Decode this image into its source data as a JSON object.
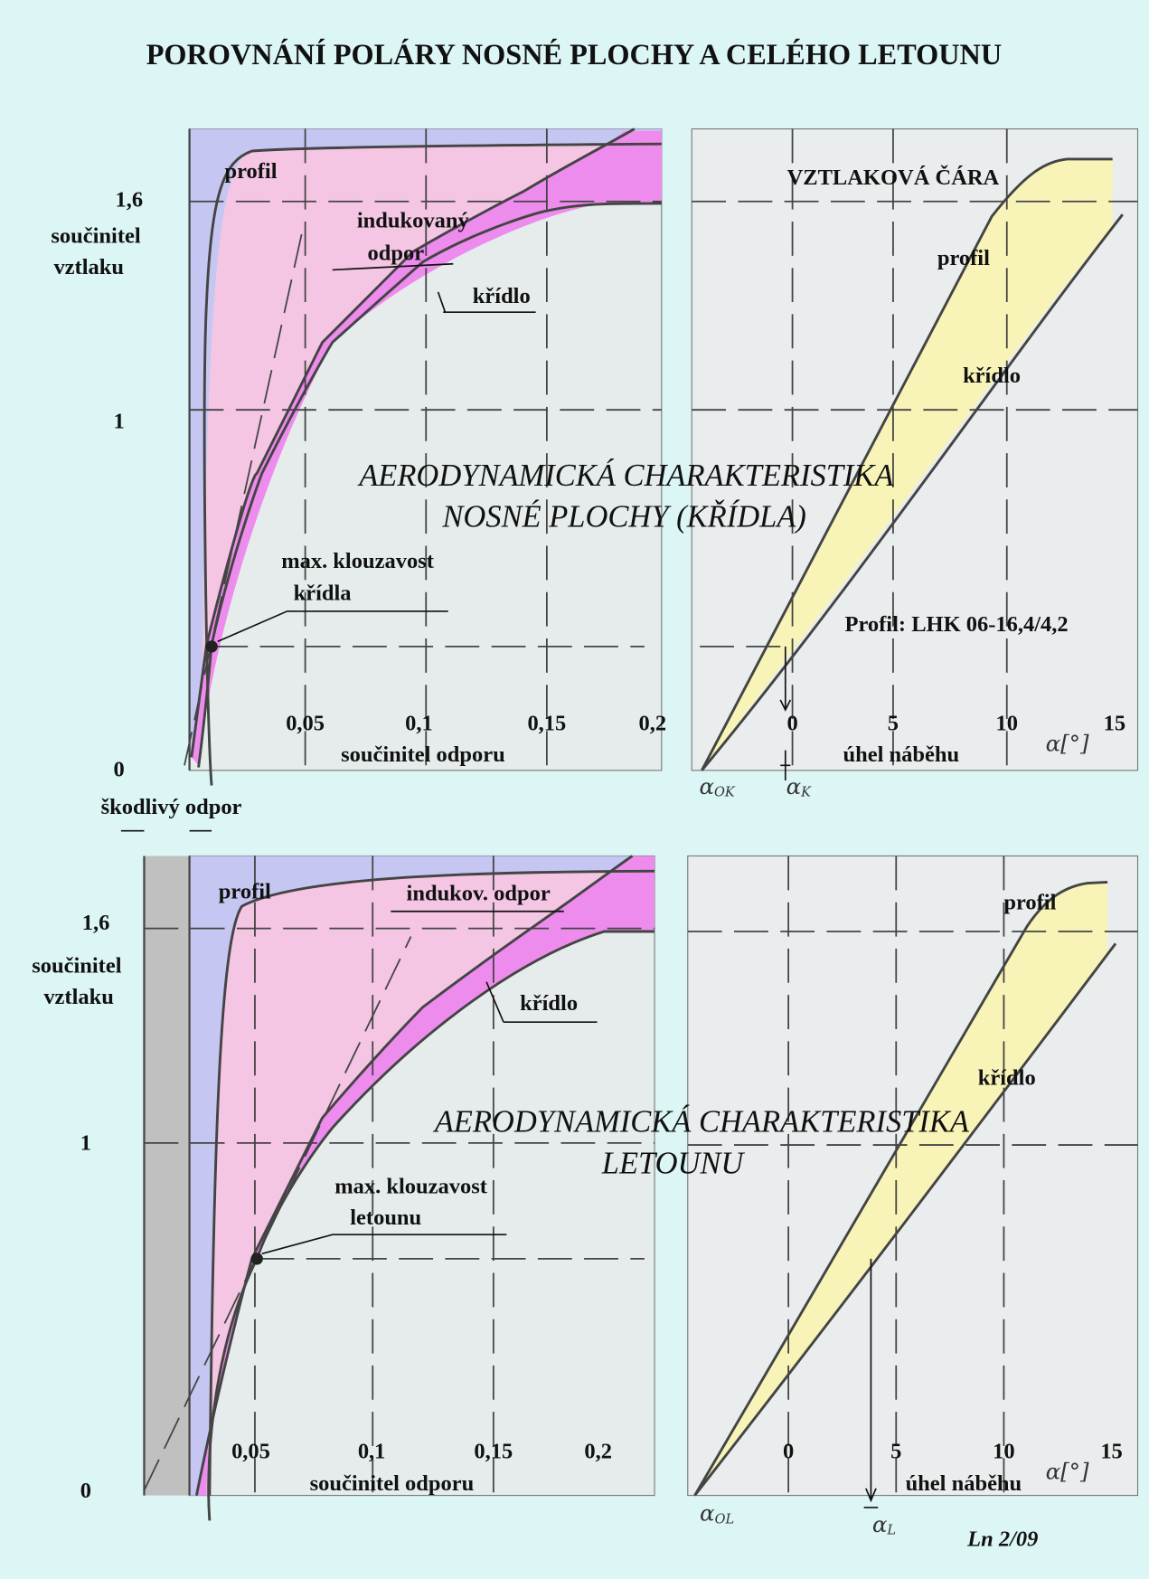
{
  "title": "POROVNÁNÍ POLÁRY NOSNÉ PLOCHY A CELÉHO LETOUNU",
  "wing": {
    "heading": "AERODYNAMICKÁ CHARAKTERISTIKA",
    "subheading": "NOSNÉ PLOCHY (KŘÍDLA)",
    "polar": {
      "profile": "profil",
      "yticks": [
        "1,6",
        "1",
        "0"
      ],
      "ylabel": [
        "součinitel",
        "vztlaku"
      ],
      "induced": [
        "indukovaný",
        "odpor"
      ],
      "wing": "křídlo",
      "max_glide": [
        "max. klouzavost",
        "křídla"
      ],
      "xticks": [
        "0,05",
        "0,1",
        "0,15",
        "0,2"
      ],
      "xlabel": "součinitel odporu",
      "parasite": "škodlivý odpor"
    },
    "lift": {
      "heading": "VZTLAKOVÁ ČÁRA",
      "profile": "profil",
      "wing": "křídlo",
      "airfoil": "Profil: LHK 06-16,4/4,2",
      "xticks": [
        "0",
        "5",
        "10",
        "15"
      ],
      "xlabel": "úhel náběhu",
      "alpha_unit": "α[°]",
      "alpha_0": {
        "symbol": "α",
        "subscript": "OK"
      },
      "alpha_max": {
        "symbol": "α",
        "subscript": "K"
      }
    }
  },
  "aircraft": {
    "heading": "AERODYNAMICKÁ CHARAKTERISTIKA",
    "subheading": "LETOUNU",
    "polar": {
      "profile": "profil",
      "yticks": [
        "1,6",
        "1",
        "0"
      ],
      "ylabel": [
        "součinitel",
        "vztlaku"
      ],
      "induced": "indukov. odpor",
      "wing": "křídlo",
      "max_glide": [
        "max. klouzavost",
        "letounu"
      ],
      "xticks": [
        "0,05",
        "0,1",
        "0,15",
        "0,2"
      ],
      "xlabel": "součinitel odporu"
    },
    "lift": {
      "profile": "profil",
      "wing": "křídlo",
      "xticks": [
        "0",
        "5",
        "10",
        "15"
      ],
      "xlabel": "úhel náběhu",
      "alpha_unit": "α[°]",
      "alpha_0": {
        "symbol": "α",
        "subscript": "OL"
      },
      "alpha_max": {
        "symbol": "α",
        "subscript": "L"
      }
    }
  },
  "footer": "Ln 2/09"
}
